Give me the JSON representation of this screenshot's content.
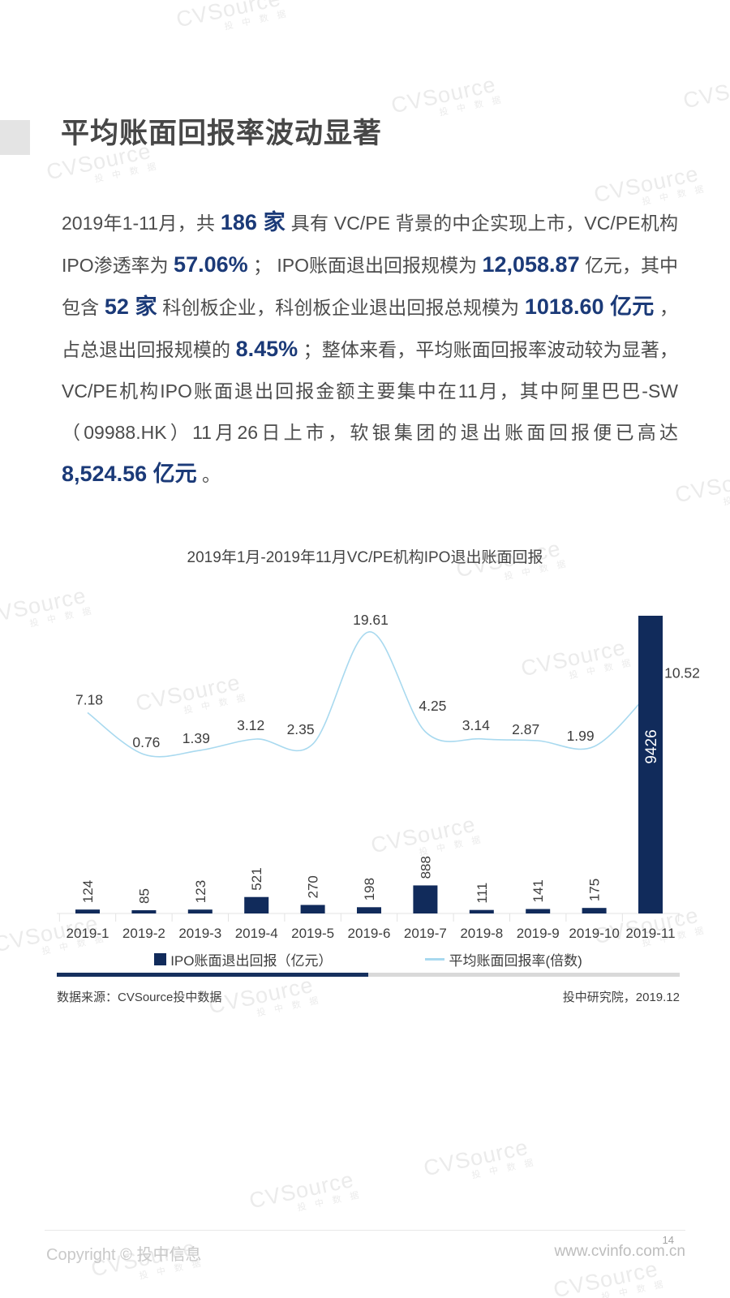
{
  "page": {
    "title": "平均账面回报率波动显著",
    "page_number": "14",
    "copyright": "Copyright © 投中信息",
    "website": "www.cvinfo.com.cn",
    "watermark": {
      "brand": "CVSource",
      "sub": "投 中 数 据"
    }
  },
  "paragraph": {
    "segments": [
      {
        "text": "2019年1-11月，共 ",
        "highlight": false
      },
      {
        "text": "186 家",
        "highlight": true
      },
      {
        "text": " 具有 VC/PE 背景的中企实现上市，VC/PE机构IPO渗透率为 ",
        "highlight": false
      },
      {
        "text": "57.06%",
        "highlight": true
      },
      {
        "text": " ； IPO账面退出回报规模为 ",
        "highlight": false
      },
      {
        "text": "12,058.87",
        "highlight": true
      },
      {
        "text": " 亿元，其中包含 ",
        "highlight": false
      },
      {
        "text": "52 家",
        "highlight": true
      },
      {
        "text": " 科创板企业，科创板企业退出回报总规模为 ",
        "highlight": false
      },
      {
        "text": "1018.60 亿元",
        "highlight": true
      },
      {
        "text": " ，占总退出回报规模的 ",
        "highlight": false
      },
      {
        "text": "8.45%",
        "highlight": true
      },
      {
        "text": " ；整体来看，平均账面回报率波动较为显著，VC/PE机构IPO账面退出回报金额主要集中在11月，其中阿里巴巴-SW（09988.HK）11月26日上市，软银集团的退出账面回报便已高达 ",
        "highlight": false
      },
      {
        "text": "8,524.56 亿元",
        "highlight": true
      },
      {
        "text": " 。",
        "highlight": false
      }
    ]
  },
  "chart_data": {
    "type": "bar+line",
    "title": "2019年1月-2019年11月VC/PE机构IPO退出账面回报",
    "categories": [
      "2019-1",
      "2019-2",
      "2019-3",
      "2019-4",
      "2019-5",
      "2019-6",
      "2019-7",
      "2019-8",
      "2019-9",
      "2019-10",
      "2019-11"
    ],
    "series": [
      {
        "name": "IPO账面退出回报（亿元）",
        "type": "bar",
        "color": "#112b5b",
        "values": [
          124,
          85,
          123,
          521,
          270,
          198,
          888,
          111,
          141,
          175,
          9426
        ]
      },
      {
        "name": "平均账面回报率(倍数)",
        "type": "line",
        "color": "#a8d9ef",
        "values": [
          7.18,
          0.76,
          1.39,
          3.12,
          2.35,
          19.61,
          4.25,
          3.14,
          2.87,
          1.99,
          10.52
        ]
      }
    ],
    "legend_position": "bottom",
    "grid": false,
    "bar_axis_max_value": 9426,
    "line_label_color": "#3d3d3d",
    "bar_inside_label_color": "#ffffff",
    "axis_color": "#e3e3e3",
    "text_color": "#454545"
  },
  "source_row": {
    "left": "数据来源：CVSource投中数据",
    "right": "投中研究院，2019.12"
  }
}
